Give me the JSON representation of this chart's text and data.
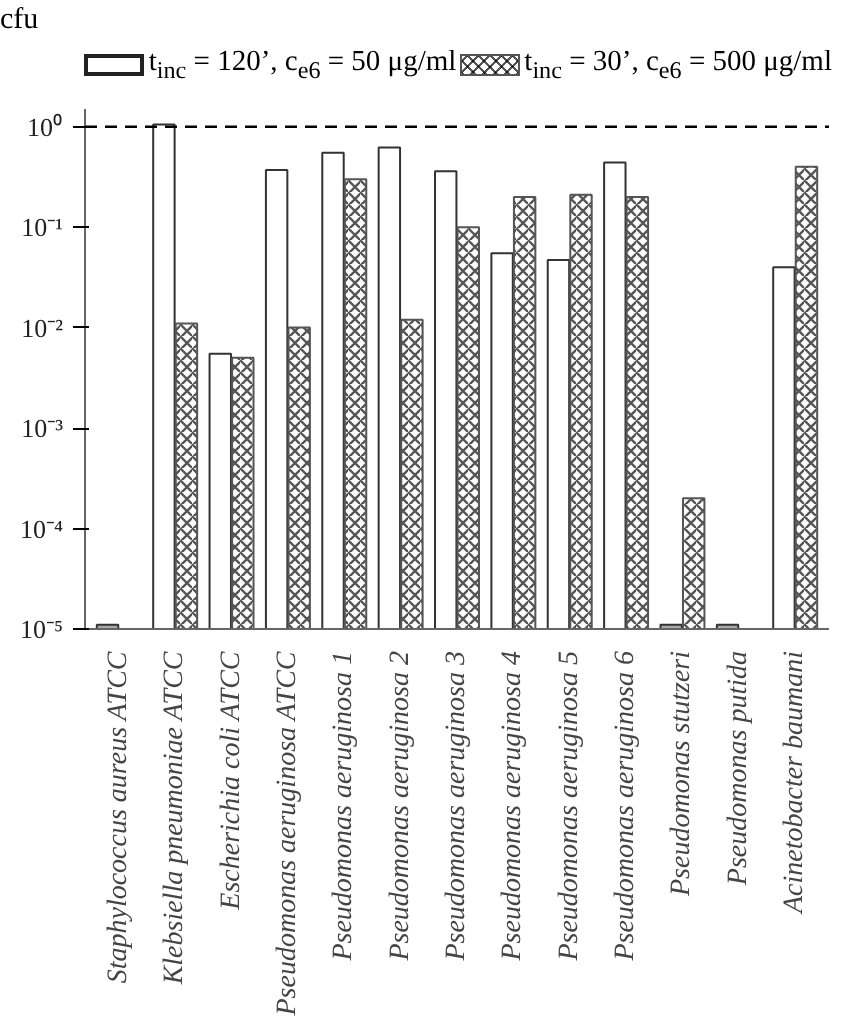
{
  "chart_data": {
    "type": "bar",
    "ylabel": "cfu",
    "categories": [
      "Staphylococcus aureus ATCC",
      "Klebsiella pneumoniae ATCC",
      "Escherichia coli ATCC",
      "Pseudomonas aeruginosa ATCC",
      "Pseudomonas aeruginosa 1",
      "Pseudomonas aeruginosa 2",
      "Pseudomonas aeruginosa 3",
      "Pseudomonas aeruginosa 4",
      "Pseudomonas aeruginosa 5",
      "Pseudomonas aeruginosa 6",
      "Pseudomonas stutzeri",
      "Pseudomonas putida",
      "Acinetobacter baumani"
    ],
    "series": [
      {
        "name": "t$_{inc}$ = 120’,  c$_{e6}$ = 50 μg/ml",
        "color": "#ffffff",
        "colors": [
          "#aaaaaa",
          "#ffffff",
          "#ffffff",
          "#ffffff",
          "#ffffff",
          "#ffffff",
          "#ffffff",
          "#ffffff",
          "#ffffff",
          "#ffffff",
          "#aaaaaa",
          "#aaaaaa",
          "#ffffff"
        ],
        "values": [
          1.1e-05,
          1.05,
          0.0055,
          0.37,
          0.55,
          0.62,
          0.36,
          0.055,
          0.047,
          0.44,
          1.1e-05,
          1.1e-05,
          0.04
        ]
      },
      {
        "name": "t$_{inc}$ = 30’,  c$_{e6}$ = 500 μg/ml",
        "color": "#555555",
        "values": [
          null,
          0.011,
          0.005,
          0.01,
          0.3,
          0.012,
          0.1,
          0.2,
          0.21,
          0.2,
          0.0002,
          null,
          0.4
        ]
      }
    ],
    "log": true,
    "ylim": [
      1e-05,
      1.5
    ],
    "yticks": [
      {
        "value": 1e-05,
        "label": "10⁻⁵"
      },
      {
        "value": 0.0001,
        "label": "10⁻⁴"
      },
      {
        "value": 0.001,
        "label": "10⁻³"
      },
      {
        "value": 0.01,
        "label": "10⁻²"
      },
      {
        "value": 0.1,
        "label": "10⁻¹"
      },
      {
        "value": 1,
        "label": "10⁰"
      }
    ],
    "ref_lines": [
      {
        "axis": "y",
        "value": 1,
        "line_style": "dashed",
        "color": "#000000"
      }
    ],
    "grid": false,
    "legend": "top"
  }
}
